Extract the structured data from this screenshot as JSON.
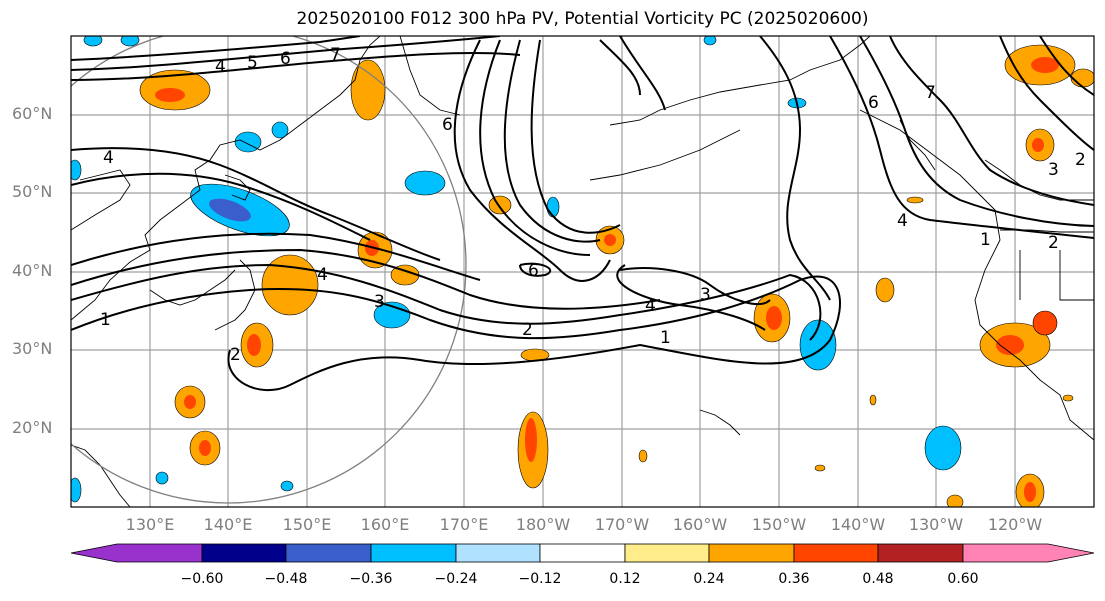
{
  "title": "2025020100 F012 300 hPa PV, Potential Vorticity PC (2025020600)",
  "lat_labels": [
    "60°N",
    "50°N",
    "40°N",
    "30°N",
    "20°N"
  ],
  "lon_labels": [
    "130°E",
    "140°E",
    "150°E",
    "160°E",
    "170°E",
    "180°W",
    "170°W",
    "160°W",
    "150°W",
    "140°W",
    "130°W",
    "120°W"
  ],
  "colorbar": {
    "ticks": [
      "−0.60",
      "−0.48",
      "−0.36",
      "−0.24",
      "−0.12",
      "0.12",
      "0.24",
      "0.36",
      "0.48",
      "0.60"
    ],
    "colors": [
      "#9932cc",
      "#00008b",
      "#3a5fcd",
      "#00bfff",
      "#b0e2ff",
      "#ffffff",
      "#ffec8b",
      "#ffa500",
      "#ff4500",
      "#b22222",
      "#ff83b4"
    ]
  },
  "contour_labels": [
    "1",
    "2",
    "3",
    "4",
    "5",
    "6",
    "7"
  ],
  "colors": {
    "land": "#000000",
    "grid": "#a0a0a0",
    "contour": "#000000",
    "circle": "#808080"
  }
}
